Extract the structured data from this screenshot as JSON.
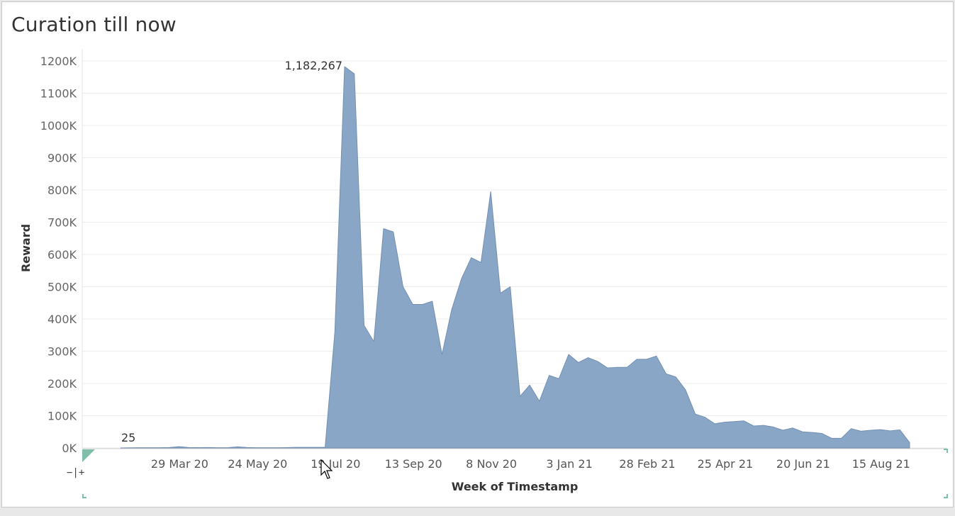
{
  "page": {
    "title": "Curation till now"
  },
  "zoom_control_label": "−|+",
  "chart_data": {
    "type": "area",
    "title": "Curation till now",
    "xlabel": "Week of Timestamp",
    "ylabel": "Reward",
    "ylim": [
      0,
      1200000
    ],
    "yticks": [
      0,
      100000,
      200000,
      300000,
      400000,
      500000,
      600000,
      700000,
      800000,
      900000,
      1000000,
      1100000,
      1200000
    ],
    "ytick_labels": [
      "0K",
      "100K",
      "200K",
      "300K",
      "400K",
      "500K",
      "600K",
      "700K",
      "800K",
      "900K",
      "1000K",
      "1100K",
      "1200K"
    ],
    "xtick_labels": [
      "29 Mar 20",
      "24 May 20",
      "19 Jul 20",
      "13 Sep 20",
      "8 Nov 20",
      "3 Jan 21",
      "28 Feb 21",
      "25 Apr 21",
      "20 Jun 21",
      "15 Aug 21"
    ],
    "xtick_weeks": [
      6,
      14,
      22,
      30,
      38,
      46,
      54,
      62,
      70,
      78
    ],
    "grid": "horizontal",
    "color": "#8aa6c6",
    "stroke": "#7390b4",
    "series": [
      {
        "values": [
          25,
          500,
          800,
          800,
          800,
          1500,
          4000,
          1500,
          1000,
          1500,
          800,
          800,
          3500,
          1500,
          900,
          800,
          800,
          1200,
          2000,
          2000,
          2000,
          2000,
          360000,
          1182267,
          1160000,
          380000,
          330000,
          680000,
          670000,
          500000,
          445000,
          445000,
          455000,
          290000,
          430000,
          525000,
          590000,
          575000,
          795000,
          480000,
          500000,
          160000,
          195000,
          145000,
          225000,
          215000,
          290000,
          265000,
          280000,
          268000,
          248000,
          250000,
          250000,
          275000,
          275000,
          285000,
          230000,
          220000,
          180000,
          105000,
          95000,
          75000,
          80000,
          82000,
          84000,
          68000,
          70000,
          65000,
          55000,
          62000,
          50000,
          48000,
          45000,
          30000,
          30000,
          60000,
          52000,
          55000,
          57000,
          53000,
          56000,
          17000
        ]
      }
    ],
    "annotations": [
      {
        "week": 0,
        "value": 25,
        "text": "25"
      },
      {
        "week": 23,
        "value": 1182267,
        "text": "1,182,267"
      }
    ]
  }
}
